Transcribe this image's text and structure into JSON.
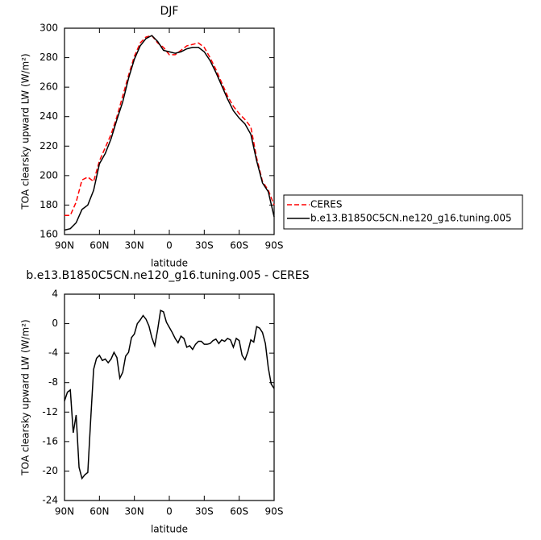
{
  "chart_data": [
    {
      "type": "line",
      "title": "DJF",
      "xlabel": "latitude",
      "ylabel": "TOA clearsky upward LW (W/m²)",
      "xlim": [
        90,
        -90
      ],
      "xticks": [
        {
          "value": 90,
          "label": "90N"
        },
        {
          "value": 60,
          "label": "60N"
        },
        {
          "value": 30,
          "label": "30N"
        },
        0,
        {
          "value": -30,
          "label": "30S"
        },
        {
          "value": -60,
          "label": "60S"
        },
        {
          "value": -90,
          "label": "90S"
        }
      ],
      "ylim": [
        160,
        300
      ],
      "yticks": [
        160,
        180,
        200,
        220,
        240,
        260,
        280,
        300
      ],
      "legend": "outside-right",
      "x": [
        90,
        85,
        80,
        75,
        70,
        65,
        60,
        55,
        50,
        45,
        40,
        35,
        30,
        25,
        20,
        15,
        10,
        5,
        0,
        -5,
        -10,
        -15,
        -20,
        -25,
        -30,
        -35,
        -40,
        -45,
        -50,
        -55,
        -60,
        -65,
        -70,
        -75,
        -80,
        -85,
        -90
      ],
      "series": [
        {
          "name": "CERES",
          "color": "#ff0000",
          "line_style": "dashed",
          "values": [
            173,
            173,
            182,
            197,
            199,
            196,
            210,
            219,
            228,
            240,
            254,
            268,
            281,
            290,
            294,
            295,
            290,
            287,
            282,
            282,
            285,
            288,
            289,
            290,
            287,
            280,
            272,
            263,
            254,
            247,
            242,
            238,
            233,
            212,
            196,
            190,
            180
          ]
        },
        {
          "name": "b.e13.B1850C5CN.ne120_g16.tuning.005",
          "color": "#000000",
          "line_style": "solid",
          "values": [
            163,
            164,
            168,
            177,
            180,
            190,
            208,
            215,
            225,
            238,
            250,
            266,
            279,
            288,
            293,
            295,
            291,
            285,
            284,
            283,
            284,
            286,
            287,
            287,
            284,
            278,
            270,
            261,
            252,
            244,
            239,
            235,
            228,
            210,
            195,
            189,
            172
          ]
        }
      ]
    },
    {
      "type": "line",
      "title": "b.e13.B1850C5CN.ne120_g16.tuning.005 - CERES",
      "xlabel": "latitude",
      "ylabel": "TOA clearsky upward LW (W/m²)",
      "xlim": [
        90,
        -90
      ],
      "xticks": [
        {
          "value": 90,
          "label": "90N"
        },
        {
          "value": 60,
          "label": "60N"
        },
        {
          "value": 30,
          "label": "30N"
        },
        0,
        {
          "value": -30,
          "label": "30S"
        },
        {
          "value": -60,
          "label": "60S"
        },
        {
          "value": -90,
          "label": "90S"
        }
      ],
      "ylim": [
        -24,
        4
      ],
      "yticks": [
        -24,
        -20,
        -16,
        -12,
        -8,
        -4,
        0,
        4
      ],
      "x": [
        90,
        87.5,
        85,
        82.5,
        80,
        77.5,
        75,
        72.5,
        70,
        67.5,
        65,
        62.5,
        60,
        57.5,
        55,
        52.5,
        50,
        47.5,
        45,
        42.5,
        40,
        37.5,
        35,
        32.5,
        30,
        27.5,
        25,
        22.5,
        20,
        17.5,
        15,
        12.5,
        10,
        7.5,
        5,
        2.5,
        0,
        -2.5,
        -5,
        -7.5,
        -10,
        -12.5,
        -15,
        -17.5,
        -20,
        -22.5,
        -25,
        -27.5,
        -30,
        -32.5,
        -35,
        -37.5,
        -40,
        -42.5,
        -45,
        -47.5,
        -50,
        -52.5,
        -55,
        -57.5,
        -60,
        -62.5,
        -65,
        -67.5,
        -70,
        -72.5,
        -75,
        -77.5,
        -80,
        -82.5,
        -85,
        -87.5,
        -90
      ],
      "series": [
        {
          "color": "#000000",
          "line_style": "solid",
          "values": [
            -10.5,
            -9.3,
            -9.0,
            -14.8,
            -12.4,
            -19.5,
            -21,
            -20.5,
            -20.2,
            -13,
            -6.2,
            -4.7,
            -4.3,
            -5.0,
            -4.8,
            -5.3,
            -4.8,
            -3.9,
            -4.6,
            -7.4,
            -6.6,
            -4.4,
            -3.9,
            -1.9,
            -1.4,
            0,
            0.5,
            1.1,
            0.6,
            -0.3,
            -1.9,
            -3.0,
            -0.8,
            1.8,
            1.6,
            0.2,
            -0.5,
            -1.2,
            -2.0,
            -2.6,
            -1.7,
            -2.0,
            -3.2,
            -3.0,
            -3.5,
            -2.8,
            -2.4,
            -2.4,
            -2.8,
            -2.8,
            -2.7,
            -2.3,
            -2.1,
            -2.7,
            -2.2,
            -2.4,
            -2.0,
            -2.2,
            -3.2,
            -2.0,
            -2.3,
            -4.3,
            -4.9,
            -3.8,
            -2.2,
            -2.5,
            -0.4,
            -0.6,
            -1.2,
            -2.7,
            -6,
            -8.2,
            -8.8
          ]
        }
      ]
    }
  ]
}
